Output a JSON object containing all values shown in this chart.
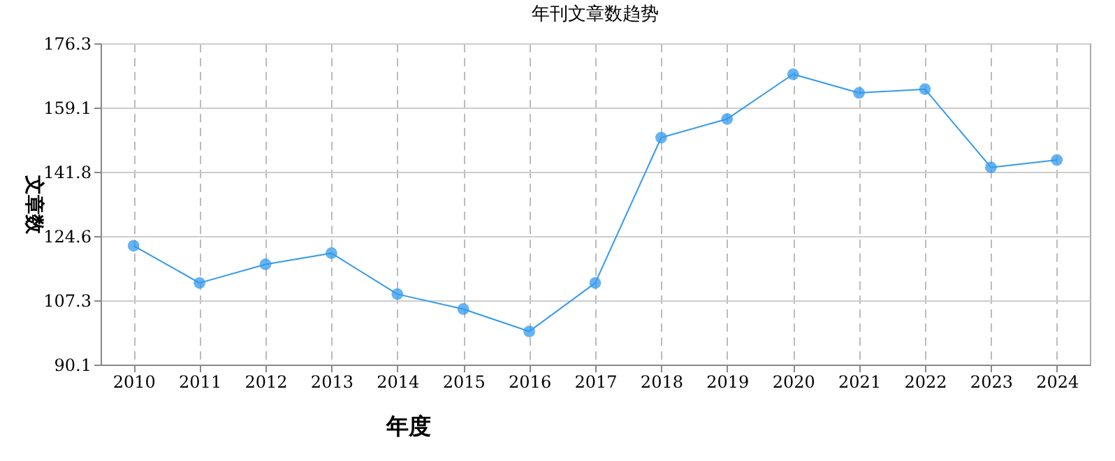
{
  "chart_data": {
    "type": "line",
    "title": "年刊文章数趋势",
    "xlabel": "年度",
    "ylabel": "文章数",
    "categories": [
      "2010",
      "2011",
      "2012",
      "2013",
      "2014",
      "2015",
      "2016",
      "2017",
      "2018",
      "2019",
      "2020",
      "2021",
      "2022",
      "2023",
      "2024"
    ],
    "series": [
      {
        "color": "#3399ee",
        "values": [
          122,
          112,
          117,
          120,
          109,
          105,
          99,
          112,
          151,
          156,
          168,
          163,
          164,
          143,
          145
        ]
      }
    ],
    "ylim": [
      90.1,
      176.3
    ],
    "yticks": [
      90.1,
      107.3,
      124.6,
      141.8,
      159.1,
      176.3
    ],
    "grid": true,
    "marker": "circle",
    "line_style": "solid",
    "legend": false
  }
}
